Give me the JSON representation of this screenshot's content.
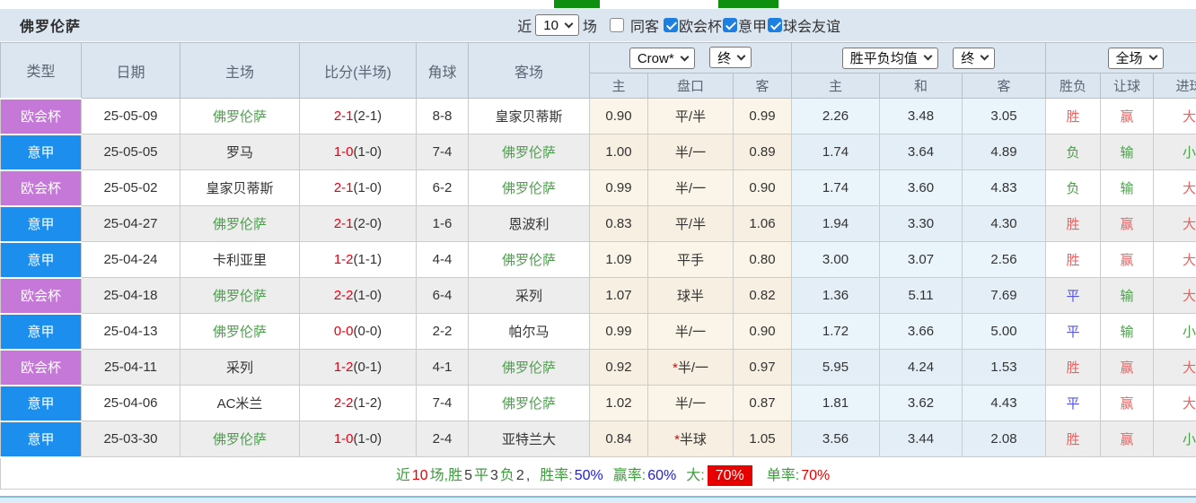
{
  "control_bar": {
    "team_name": "佛罗伦萨",
    "recent_label": "近",
    "recent_count": "10",
    "games_label": "场",
    "same_venue_label": "同客",
    "filters": [
      {
        "label": "欧会杯",
        "checked": true
      },
      {
        "label": "意甲",
        "checked": true
      },
      {
        "label": "球会友谊",
        "checked": true
      }
    ]
  },
  "table": {
    "columns": [
      "类型",
      "日期",
      "主场",
      "比分(半场)",
      "角球",
      "客场"
    ],
    "selects": {
      "bookmaker": "Crow*",
      "odds_time": "终",
      "avg_type": "胜平负均值",
      "avg_time": "终",
      "period": "全场"
    },
    "sub_columns": [
      "主",
      "盘口",
      "客",
      "主",
      "和",
      "客",
      "胜负",
      "让球",
      "进球"
    ],
    "league_colors": {
      "欧会杯": "#c678d8",
      "意甲": "#1c8fee"
    },
    "focus_team_color": "#4aa04a",
    "result_colors": {
      "胜": "#ef6060",
      "负": "#4aa04a",
      "平": "#5353e0",
      "赢": "#ef6060",
      "输": "#4aa04a",
      "大": "#ef6060",
      "小": "#4aa04a"
    },
    "rows": [
      {
        "league": "欧会杯",
        "date": "25-05-09",
        "home": "佛罗伦萨",
        "score": "2-1",
        "half": "(2-1)",
        "corner": "8-8",
        "away": "皇家贝蒂斯",
        "odds_home": "0.90",
        "handicap": "平/半",
        "handicap_star": false,
        "odds_away": "0.99",
        "avg_home": "2.26",
        "avg_draw": "3.48",
        "avg_away": "3.05",
        "result_wdl": "胜",
        "result_handicap": "赢",
        "result_goals": "大"
      },
      {
        "league": "意甲",
        "date": "25-05-05",
        "home": "罗马",
        "score": "1-0",
        "half": "(1-0)",
        "corner": "7-4",
        "away": "佛罗伦萨",
        "odds_home": "1.00",
        "handicap": "半/一",
        "handicap_star": false,
        "odds_away": "0.89",
        "avg_home": "1.74",
        "avg_draw": "3.64",
        "avg_away": "4.89",
        "result_wdl": "负",
        "result_handicap": "输",
        "result_goals": "小"
      },
      {
        "league": "欧会杯",
        "date": "25-05-02",
        "home": "皇家贝蒂斯",
        "score": "2-1",
        "half": "(1-0)",
        "corner": "6-2",
        "away": "佛罗伦萨",
        "odds_home": "0.99",
        "handicap": "半/一",
        "handicap_star": false,
        "odds_away": "0.90",
        "avg_home": "1.74",
        "avg_draw": "3.60",
        "avg_away": "4.83",
        "result_wdl": "负",
        "result_handicap": "输",
        "result_goals": "大"
      },
      {
        "league": "意甲",
        "date": "25-04-27",
        "home": "佛罗伦萨",
        "score": "2-1",
        "half": "(2-0)",
        "corner": "1-6",
        "away": "恩波利",
        "odds_home": "0.83",
        "handicap": "平/半",
        "handicap_star": false,
        "odds_away": "1.06",
        "avg_home": "1.94",
        "avg_draw": "3.30",
        "avg_away": "4.30",
        "result_wdl": "胜",
        "result_handicap": "赢",
        "result_goals": "大"
      },
      {
        "league": "意甲",
        "date": "25-04-24",
        "home": "卡利亚里",
        "score": "1-2",
        "half": "(1-1)",
        "corner": "4-4",
        "away": "佛罗伦萨",
        "odds_home": "1.09",
        "handicap": "平手",
        "handicap_star": false,
        "odds_away": "0.80",
        "avg_home": "3.00",
        "avg_draw": "3.07",
        "avg_away": "2.56",
        "result_wdl": "胜",
        "result_handicap": "赢",
        "result_goals": "大"
      },
      {
        "league": "欧会杯",
        "date": "25-04-18",
        "home": "佛罗伦萨",
        "score": "2-2",
        "half": "(1-0)",
        "corner": "6-4",
        "away": "采列",
        "odds_home": "1.07",
        "handicap": "球半",
        "handicap_star": false,
        "odds_away": "0.82",
        "avg_home": "1.36",
        "avg_draw": "5.11",
        "avg_away": "7.69",
        "result_wdl": "平",
        "result_handicap": "输",
        "result_goals": "大"
      },
      {
        "league": "意甲",
        "date": "25-04-13",
        "home": "佛罗伦萨",
        "score": "0-0",
        "half": "(0-0)",
        "corner": "2-2",
        "away": "帕尔马",
        "odds_home": "0.99",
        "handicap": "半/一",
        "handicap_star": false,
        "odds_away": "0.90",
        "avg_home": "1.72",
        "avg_draw": "3.66",
        "avg_away": "5.00",
        "result_wdl": "平",
        "result_handicap": "输",
        "result_goals": "小"
      },
      {
        "league": "欧会杯",
        "date": "25-04-11",
        "home": "采列",
        "score": "1-2",
        "half": "(0-1)",
        "corner": "4-1",
        "away": "佛罗伦萨",
        "odds_home": "0.92",
        "handicap": "半/一",
        "handicap_star": true,
        "odds_away": "0.97",
        "avg_home": "5.95",
        "avg_draw": "4.24",
        "avg_away": "1.53",
        "result_wdl": "胜",
        "result_handicap": "赢",
        "result_goals": "大"
      },
      {
        "league": "意甲",
        "date": "25-04-06",
        "home": "AC米兰",
        "score": "2-2",
        "half": "(1-2)",
        "corner": "7-4",
        "away": "佛罗伦萨",
        "odds_home": "1.02",
        "handicap": "半/一",
        "handicap_star": false,
        "odds_away": "0.87",
        "avg_home": "1.81",
        "avg_draw": "3.62",
        "avg_away": "4.43",
        "result_wdl": "平",
        "result_handicap": "赢",
        "result_goals": "大"
      },
      {
        "league": "意甲",
        "date": "25-03-30",
        "home": "佛罗伦萨",
        "score": "1-0",
        "half": "(1-0)",
        "corner": "2-4",
        "away": "亚特兰大",
        "odds_home": "0.84",
        "handicap": "半球",
        "handicap_star": true,
        "odds_away": "1.05",
        "avg_home": "3.56",
        "avg_draw": "3.44",
        "avg_away": "2.08",
        "result_wdl": "胜",
        "result_handicap": "赢",
        "result_goals": "小"
      }
    ]
  },
  "footer": {
    "near_label": "近",
    "near_count": "10",
    "games_win_label": "场,胜",
    "wins": "5",
    "draw_label": "平",
    "draws": "3",
    "loss_label": "负",
    "losses": "2",
    "comma": ",",
    "win_rate_label": "胜率:",
    "win_rate": "50%",
    "handicap_rate_label": "赢率:",
    "handicap_rate": "60%",
    "big_label": "大:",
    "big_rate": "70%",
    "single_label": "单率:",
    "single_rate": "70%"
  }
}
